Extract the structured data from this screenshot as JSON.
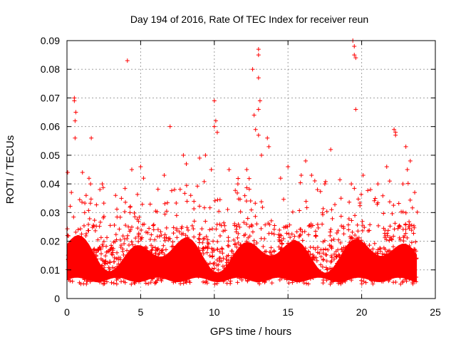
{
  "chart_data": {
    "type": "scatter",
    "title": "Day 194 of 2016, Rate Of TEC Index for receiver reun",
    "xlabel": "GPS time / hours",
    "ylabel": "ROTI / TECUs",
    "xlim": [
      0,
      25
    ],
    "ylim": [
      0,
      0.09
    ],
    "x_ticks": [
      0,
      5,
      10,
      15,
      20,
      25
    ],
    "y_ticks": [
      0,
      0.01,
      0.02,
      0.03,
      0.04,
      0.05,
      0.06,
      0.07,
      0.08,
      0.09
    ],
    "x_tick_labels": [
      "0",
      "5",
      "10",
      "15",
      "20",
      "25"
    ],
    "y_tick_labels": [
      "0",
      "0.01",
      "0.02",
      "0.03",
      "0.04",
      "0.05",
      "0.06",
      "0.07",
      "0.08",
      "0.09"
    ],
    "grid": true,
    "marker": "+",
    "color": "#ff0000",
    "series": [
      {
        "name": "ROTI",
        "points": [
          [
            0.05,
            0.044
          ],
          [
            0.3,
            0.037
          ],
          [
            0.5,
            0.07
          ],
          [
            0.5,
            0.069
          ],
          [
            0.6,
            0.065
          ],
          [
            0.55,
            0.062
          ],
          [
            0.55,
            0.056
          ],
          [
            1.05,
            0.044
          ],
          [
            1.2,
            0.03
          ],
          [
            1.3,
            0.036
          ],
          [
            1.6,
            0.04
          ],
          [
            1.65,
            0.056
          ],
          [
            2.4,
            0.04
          ],
          [
            3.3,
            0.036
          ],
          [
            4.1,
            0.083
          ],
          [
            4.4,
            0.045
          ],
          [
            5.0,
            0.046
          ],
          [
            5.2,
            0.042
          ],
          [
            6.6,
            0.043
          ],
          [
            7.0,
            0.06
          ],
          [
            7.3,
            0.038
          ],
          [
            7.9,
            0.05
          ],
          [
            8.1,
            0.047
          ],
          [
            8.4,
            0.036
          ],
          [
            9.0,
            0.049
          ],
          [
            9.4,
            0.05
          ],
          [
            9.8,
            0.045
          ],
          [
            10.0,
            0.069
          ],
          [
            10.1,
            0.062
          ],
          [
            10.0,
            0.06
          ],
          [
            10.2,
            0.058
          ],
          [
            11.0,
            0.045
          ],
          [
            11.6,
            0.04
          ],
          [
            12.2,
            0.045
          ],
          [
            12.6,
            0.08
          ],
          [
            12.7,
            0.064
          ],
          [
            12.8,
            0.059
          ],
          [
            13.0,
            0.087
          ],
          [
            13.0,
            0.085
          ],
          [
            13.0,
            0.077
          ],
          [
            13.1,
            0.069
          ],
          [
            13.0,
            0.066
          ],
          [
            13.0,
            0.057
          ],
          [
            13.2,
            0.05
          ],
          [
            13.6,
            0.056
          ],
          [
            13.7,
            0.053
          ],
          [
            14.5,
            0.042
          ],
          [
            15.0,
            0.046
          ],
          [
            15.9,
            0.043
          ],
          [
            16.2,
            0.048
          ],
          [
            16.6,
            0.043
          ],
          [
            17.0,
            0.038
          ],
          [
            17.5,
            0.04
          ],
          [
            17.9,
            0.052
          ],
          [
            18.6,
            0.035
          ],
          [
            19.3,
            0.04
          ],
          [
            19.4,
            0.09
          ],
          [
            19.5,
            0.088
          ],
          [
            19.5,
            0.085
          ],
          [
            19.6,
            0.084
          ],
          [
            19.6,
            0.066
          ],
          [
            20.1,
            0.043
          ],
          [
            20.6,
            0.038
          ],
          [
            21.1,
            0.04
          ],
          [
            21.7,
            0.046
          ],
          [
            21.9,
            0.041
          ],
          [
            22.2,
            0.059
          ],
          [
            22.3,
            0.058
          ],
          [
            22.3,
            0.057
          ],
          [
            22.8,
            0.04
          ],
          [
            23.0,
            0.053
          ],
          [
            23.1,
            0.045
          ],
          [
            23.3,
            0.048
          ],
          [
            23.6,
            0.037
          ]
        ]
      }
    ]
  }
}
